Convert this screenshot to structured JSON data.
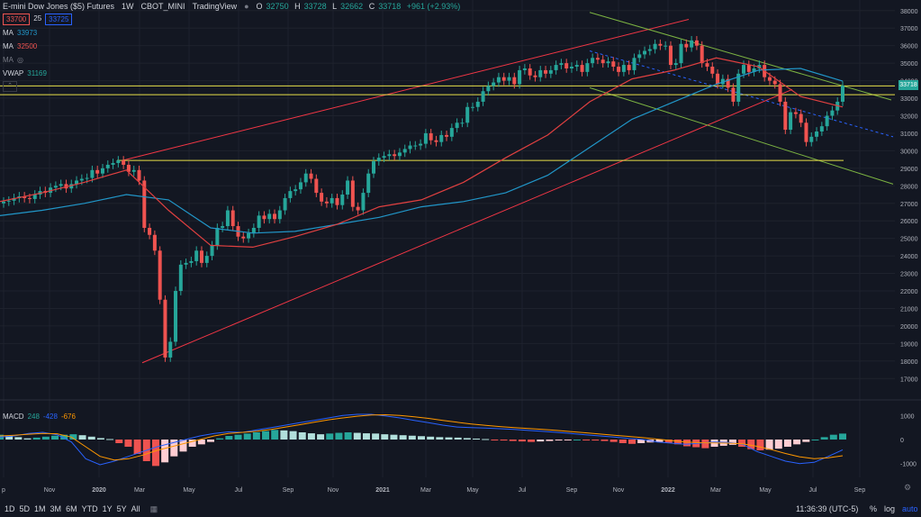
{
  "header": {
    "title": "E-mini Dow Jones ($5) Futures",
    "interval": "1W",
    "exchange": "CBOT_MINI",
    "source": "TradingView",
    "open_label": "O",
    "open": "32750",
    "high_label": "H",
    "high": "33728",
    "low_label": "L",
    "low": "32662",
    "close_label": "C",
    "close": "33718",
    "change": "+961 (+2.93%)"
  },
  "legend": {
    "bid": "33700",
    "spread": "25",
    "ask": "33725",
    "ma1_label": "MA",
    "ma1_value": "33973",
    "ma2_label": "MA",
    "ma2_value": "32500",
    "ma3_label": "MA",
    "vwap_label": "VWAP",
    "vwap_value": "31169",
    "macd_label": "MACD",
    "macd_v1": "248",
    "macd_v2": "-428",
    "macd_v3": "-676"
  },
  "price_tag": "33718",
  "time_display": "11:36:39 (UTC-5)",
  "toolbar": {
    "timeframes": [
      "1D",
      "5D",
      "1M",
      "3M",
      "6M",
      "YTD",
      "1Y",
      "5Y",
      "All"
    ],
    "percent": "%",
    "log": "log",
    "auto": "auto"
  },
  "colors": {
    "background": "#131722",
    "up": "#26a69a",
    "down": "#ef5350",
    "ma_blue": "#2196c8",
    "ma_red": "#e04040",
    "trend_red": "#f23645",
    "trend_green": "#7cb342",
    "horizontal_yellow": "#e6e04a",
    "macd_line": "#2962ff",
    "signal_line": "#ff9800"
  },
  "chart_data": [
    {
      "type": "candlestick",
      "title": "E-mini Dow Jones ($5) Futures",
      "y_ticks": [
        17000,
        18000,
        19000,
        20000,
        21000,
        22000,
        23000,
        24000,
        25000,
        26000,
        27000,
        28000,
        29000,
        30000,
        31000,
        32000,
        33000,
        34000,
        35000,
        36000,
        37000,
        38000
      ],
      "ylim": [
        16500,
        38400
      ],
      "x_ticks": [
        "p",
        "Nov",
        "2020",
        "Mar",
        "May",
        "Jul",
        "Sep",
        "Nov",
        "2021",
        "Mar",
        "May",
        "Jul",
        "Sep",
        "Nov",
        "2022",
        "Mar",
        "May",
        "Jul",
        "Sep"
      ],
      "close_series": [
        27100,
        27150,
        27300,
        27400,
        27300,
        27250,
        27500,
        27700,
        27600,
        27900,
        28000,
        28100,
        27850,
        28100,
        28300,
        28400,
        28450,
        28900,
        28700,
        29000,
        29200,
        29300,
        29450,
        29200,
        28800,
        28900,
        28300,
        25600,
        25200,
        24300,
        21500,
        18200,
        19100,
        22000,
        23500,
        23600,
        23700,
        24300,
        23600,
        24000,
        24600,
        25600,
        25700,
        26600,
        25700,
        25100,
        25000,
        25300,
        25600,
        26300,
        26100,
        26400,
        26100,
        26600,
        27300,
        27700,
        27800,
        28200,
        28700,
        28400,
        27600,
        27100,
        27000,
        27300,
        26900,
        27500,
        28300,
        26800,
        26600,
        27600,
        28700,
        29400,
        29600,
        29700,
        29800,
        29700,
        29900,
        30100,
        30300,
        30300,
        30400,
        31000,
        30600,
        30500,
        30900,
        30800,
        31300,
        31600,
        31600,
        32500,
        32500,
        32800,
        33400,
        33700,
        33900,
        34200,
        34000,
        34200,
        33800,
        34600,
        34700,
        34300,
        34200,
        34600,
        34400,
        34600,
        34900,
        35000,
        34700,
        34800,
        34900,
        34500,
        35000,
        35300,
        35200,
        35000,
        35100,
        34800,
        34500,
        34900,
        34600,
        35300,
        35500,
        35700,
        35800,
        36100,
        36000,
        36000,
        34900,
        35000,
        36100,
        35900,
        36300,
        36000,
        35000,
        34800,
        34400,
        33800,
        34100,
        33600,
        32800,
        34400,
        34900,
        34500,
        34700,
        34900,
        34200,
        34000,
        33800,
        32800,
        31200,
        32200,
        32100,
        31600,
        30500,
        30800,
        31100,
        31400,
        32000,
        32300,
        32800,
        33718
      ],
      "moving_averages": [
        {
          "name": "MA",
          "value_shown": "33973",
          "color": "#2196c8",
          "start": 26300,
          "path": [
            26300,
            26600,
            27000,
            27500,
            27200,
            25600,
            25300,
            25400,
            25800,
            26200,
            26800,
            27100,
            27600,
            28600,
            30200,
            31800,
            32800,
            33800,
            34600,
            34700,
            33973
          ]
        },
        {
          "name": "MA",
          "value_shown": "32500",
          "color": "#e04040",
          "start": 27100,
          "path": [
            27100,
            27600,
            28200,
            28900,
            26600,
            24600,
            24500,
            25100,
            25800,
            26800,
            27200,
            28200,
            29600,
            30900,
            32800,
            34100,
            34600,
            35300,
            34800,
            33100,
            32500
          ]
        }
      ],
      "trendlines": [
        {
          "color": "#f23645",
          "kind": "channel upper"
        },
        {
          "color": "#f23645",
          "kind": "channel lower"
        },
        {
          "color": "#7cb342",
          "kind": "descending channel"
        },
        {
          "color": "#e6e04a",
          "kind": "horizontal levels",
          "levels": [
            29450,
            33200,
            33700
          ]
        }
      ]
    },
    {
      "type": "bar",
      "title": "MACD",
      "values_shown": [
        "248",
        "-428",
        "-676"
      ],
      "y_ticks": [
        1000,
        0,
        -1000
      ],
      "histogram": [
        200,
        150,
        100,
        50,
        80,
        120,
        160,
        200,
        220,
        180,
        120,
        60,
        20,
        -150,
        -300,
        -600,
        -900,
        -1100,
        -950,
        -700,
        -500,
        -300,
        -200,
        -100,
        50,
        150,
        200,
        250,
        300,
        350,
        400,
        380,
        350,
        300,
        260,
        220,
        250,
        280,
        300,
        280,
        260,
        250,
        220,
        200,
        180,
        160,
        140,
        120,
        100,
        90,
        80,
        60,
        40,
        20,
        -20,
        -40,
        -60,
        -80,
        -100,
        -80,
        -60,
        -40,
        -20,
        0,
        -20,
        -40,
        -60,
        -100,
        -150,
        -180,
        -150,
        -120,
        -100,
        -150,
        -200,
        -280,
        -320,
        -360,
        -300,
        -260,
        -220,
        -300,
        -400,
        -450,
        -420,
        -380,
        -300,
        -200,
        -100,
        0,
        100,
        200,
        248
      ],
      "macd_line": [
        100,
        150,
        250,
        300,
        200,
        -100,
        -800,
        -1050,
        -900,
        -700,
        -500,
        -300,
        -150,
        0,
        150,
        250,
        320,
        300,
        400,
        500,
        600,
        700,
        800,
        900,
        1000,
        1050,
        1050,
        980,
        900,
        800,
        700,
        600,
        520,
        500,
        480,
        450,
        420,
        380,
        340,
        300,
        250,
        200,
        150,
        100,
        50,
        0,
        -100,
        -150,
        -200,
        -150,
        -100,
        -120,
        -200,
        -500,
        -700,
        -900,
        -1000,
        -950,
        -700,
        -428
      ],
      "signal_line": [
        150,
        180,
        220,
        250,
        240,
        100,
        -300,
        -700,
        -850,
        -800,
        -650,
        -450,
        -300,
        -150,
        0,
        150,
        250,
        300,
        350,
        420,
        520,
        620,
        720,
        820,
        900,
        970,
        1020,
        1030,
        1000,
        950,
        880,
        800,
        720,
        650,
        590,
        540,
        500,
        460,
        420,
        380,
        330,
        280,
        230,
        180,
        130,
        80,
        20,
        -40,
        -100,
        -130,
        -140,
        -150,
        -180,
        -280,
        -420,
        -580,
        -720,
        -800,
        -760,
        -676
      ]
    }
  ]
}
